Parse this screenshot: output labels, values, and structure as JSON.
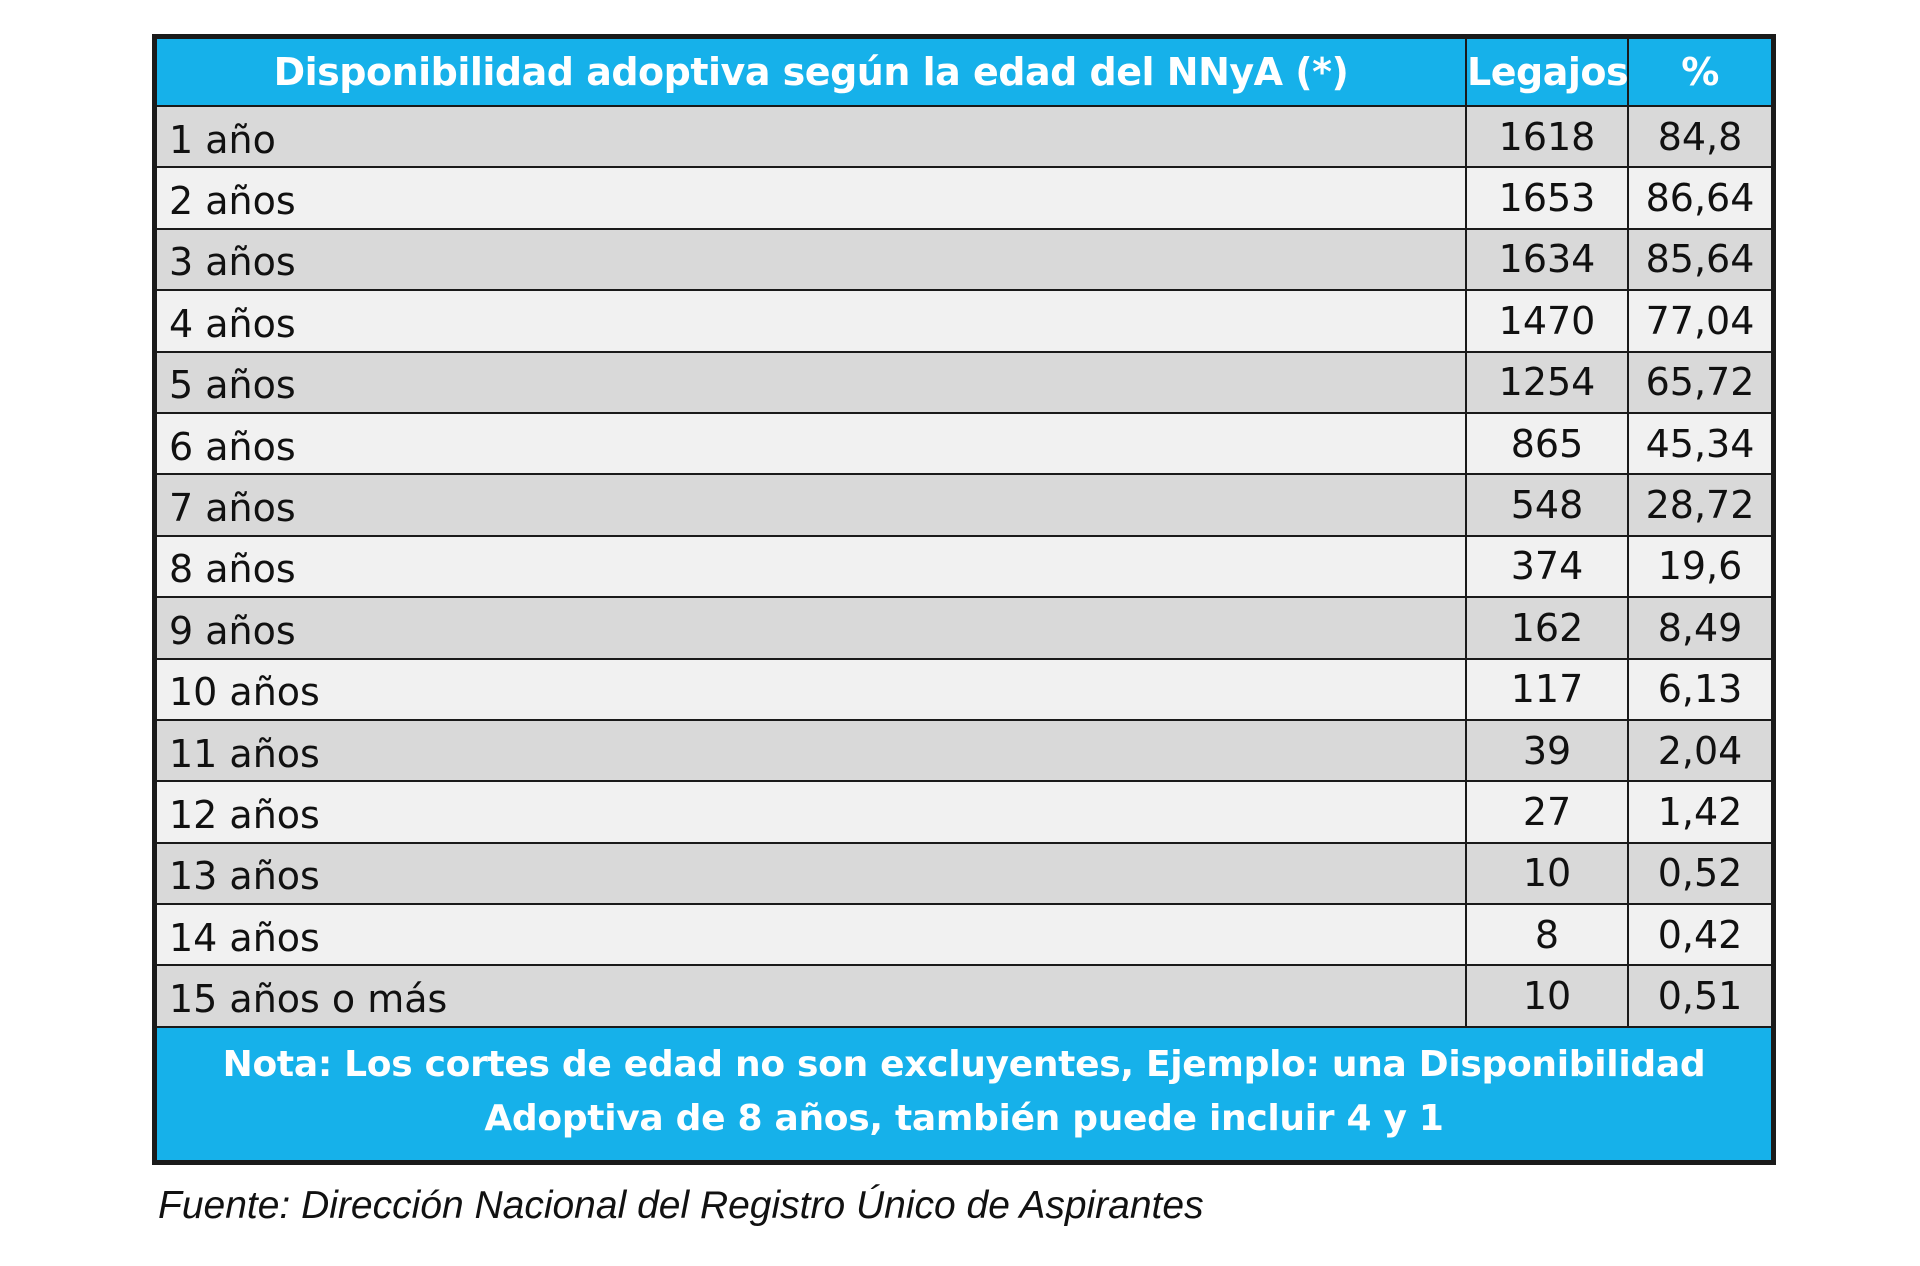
{
  "table": {
    "headers": {
      "age": "Disponibilidad adoptiva según la edad del NNyA (*)",
      "legajos": "Legajos",
      "percent": "%"
    },
    "rows": [
      {
        "age": "1 año",
        "legajos": "1618",
        "percent": "84,8"
      },
      {
        "age": "2 años",
        "legajos": "1653",
        "percent": "86,64"
      },
      {
        "age": "3 años",
        "legajos": "1634",
        "percent": "85,64"
      },
      {
        "age": "4 años",
        "legajos": "1470",
        "percent": "77,04"
      },
      {
        "age": "5 años",
        "legajos": "1254",
        "percent": "65,72"
      },
      {
        "age": "6 años",
        "legajos": "865",
        "percent": "45,34"
      },
      {
        "age": "7 años",
        "legajos": "548",
        "percent": "28,72"
      },
      {
        "age": "8 años",
        "legajos": "374",
        "percent": "19,6"
      },
      {
        "age": "9 años",
        "legajos": "162",
        "percent": "8,49"
      },
      {
        "age": "10 años",
        "legajos": "117",
        "percent": "6,13"
      },
      {
        "age": "11 años",
        "legajos": "39",
        "percent": "2,04"
      },
      {
        "age": "12 años",
        "legajos": "27",
        "percent": "1,42"
      },
      {
        "age": "13 años",
        "legajos": "10",
        "percent": "0,52"
      },
      {
        "age": "14 años",
        "legajos": "8",
        "percent": "0,42"
      },
      {
        "age": "15 años o más",
        "legajos": "10",
        "percent": "0,51"
      }
    ],
    "note": "Nota: Los cortes de edad no son excluyentes, Ejemplo: una Disponibilidad Adoptiva de 8 años, también puede incluir 4 y 1"
  },
  "source": "Fuente: Dirección Nacional del Registro Único de Aspirantes",
  "colors": {
    "header_bg": "#16b1ea",
    "row_dark": "#d9d9d9",
    "row_light": "#f1f1f1"
  }
}
